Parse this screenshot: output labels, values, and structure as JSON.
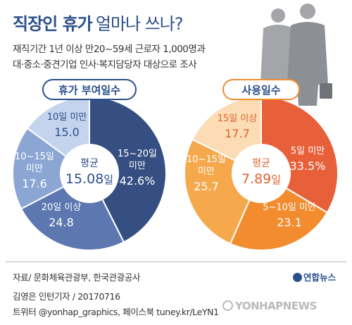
{
  "header": {
    "title_main": "직장인 휴가",
    "title_sub": "얼마나 쓰나?",
    "subtitle_line1": "재직기간 1년 이상 만20~59세 근로자 1,000명과",
    "subtitle_line2": "대·중소·중견기업 인사·복지담당자 대상으로 조사"
  },
  "footer": {
    "source": "자료/ 문화체육관광부, 한국관광공사",
    "credit": "김영은 인턴기자 / 20170716",
    "social": "트위터 @yonhap_graphics, 페이스북 tuney.kr/LeYN1",
    "brand": "연합뉴스",
    "watermark": "YONHAPNEWS"
  },
  "colors": {
    "title": "#2b4f8a",
    "left_slices": [
      "#354f82",
      "#5d77b0",
      "#8ca6d4",
      "#c4d4ee"
    ],
    "right_slices": [
      "#e8603a",
      "#f28c2e",
      "#f6a84c",
      "#fbdcb5"
    ]
  },
  "chart_data": [
    {
      "type": "pie",
      "style": "donut",
      "title": "휴가 부여일수",
      "center_label": "평균",
      "center_value": "15.08",
      "center_unit": "일",
      "slices": [
        {
          "label_lines": [
            "15~20일",
            "미만"
          ],
          "value": 42.6,
          "value_text": "42.6%",
          "color": "#354f82",
          "text_color": "#ffffff"
        },
        {
          "label_lines": [
            "20일 이상"
          ],
          "value": 24.8,
          "value_text": "24.8",
          "color": "#5d77b0",
          "text_color": "#ffffff"
        },
        {
          "label_lines": [
            "10~15일",
            "미만"
          ],
          "value": 17.6,
          "value_text": "17.6",
          "color": "#8ca6d4",
          "text_color": "#ffffff"
        },
        {
          "label_lines": [
            "10일 미만"
          ],
          "value": 15.0,
          "value_text": "15.0",
          "color": "#c4d4ee",
          "text_color": "#2b4f8a"
        }
      ]
    },
    {
      "type": "pie",
      "style": "donut",
      "title": "사용일수",
      "center_label": "평균",
      "center_value": "7.89",
      "center_unit": "일",
      "slices": [
        {
          "label_lines": [
            "5일 미만"
          ],
          "value": 33.5,
          "value_text": "33.5%",
          "color": "#e8603a",
          "text_color": "#ffffff"
        },
        {
          "label_lines": [
            "5~10일 미만"
          ],
          "value": 23.1,
          "value_text": "23.1",
          "color": "#f28c2e",
          "text_color": "#ffffff"
        },
        {
          "label_lines": [
            "10~15일",
            "미만"
          ],
          "value": 25.7,
          "value_text": "25.7",
          "color": "#f6a84c",
          "text_color": "#ffffff"
        },
        {
          "label_lines": [
            "15일 이상"
          ],
          "value": 17.7,
          "value_text": "17.7",
          "color": "#fbdcb5",
          "text_color": "#e0622e"
        }
      ]
    }
  ]
}
